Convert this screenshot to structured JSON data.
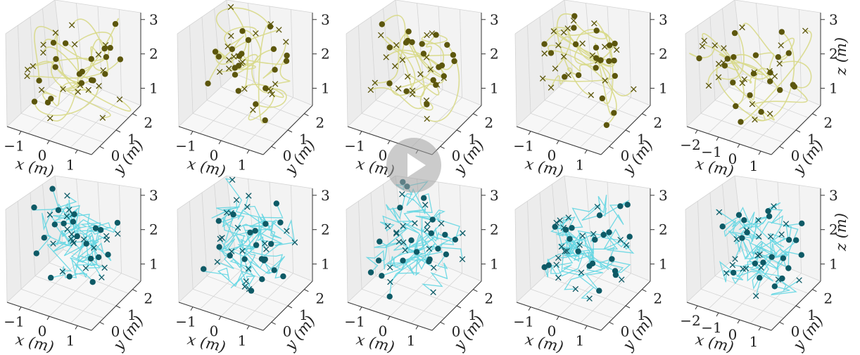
{
  "colors": {
    "top_path": "#d8d98a",
    "top_marker": "#5c560c",
    "bottom_path": "#64d6e2",
    "bottom_marker": "#0e5a66",
    "pane_left": "#ececec",
    "pane_right": "#f3f3f3",
    "pane_floor": "#f7f7f7",
    "grid": "#d4d4d4"
  },
  "overlay": {
    "icon": "play-icon"
  },
  "chart_data": [
    {
      "type": "line3d",
      "panel": "row1-col1",
      "style": "smooth",
      "xlabel": "x (m)",
      "ylabel": "y (m)",
      "zlabel": "",
      "xticks": [
        "−1",
        "0",
        "1"
      ],
      "yticks": [
        "0",
        "1",
        "2"
      ],
      "zticks": [
        "1",
        "2",
        "3"
      ],
      "xlim": [
        -1.5,
        1.5
      ],
      "ylim": [
        -0.5,
        2.5
      ],
      "zlim": [
        0.5,
        3.2
      ],
      "start_marker": "circle",
      "goal_marker": "x",
      "n_agents": 20
    },
    {
      "type": "line3d",
      "panel": "row1-col2",
      "style": "smooth",
      "xlabel": "x (m)",
      "ylabel": "y (m)",
      "zlabel": "",
      "xticks": [
        "−1",
        "0",
        "1"
      ],
      "yticks": [
        "0",
        "1",
        "2"
      ],
      "zticks": [
        "1",
        "2",
        "3"
      ],
      "xlim": [
        -1.5,
        1.5
      ],
      "ylim": [
        -0.5,
        2.5
      ],
      "zlim": [
        0.5,
        3.2
      ],
      "start_marker": "circle",
      "goal_marker": "x",
      "n_agents": 20
    },
    {
      "type": "line3d",
      "panel": "row1-col3",
      "style": "smooth",
      "xlabel": "x (m)",
      "ylabel": "y (m)",
      "zlabel": "",
      "xticks": [
        "−1",
        "0",
        "1"
      ],
      "yticks": [
        "0",
        "1",
        "2"
      ],
      "zticks": [
        "1",
        "2",
        "3"
      ],
      "xlim": [
        -1.5,
        1.5
      ],
      "ylim": [
        -0.5,
        2.5
      ],
      "zlim": [
        0.5,
        3.2
      ],
      "start_marker": "circle",
      "goal_marker": "x",
      "n_agents": 20
    },
    {
      "type": "line3d",
      "panel": "row1-col4",
      "style": "smooth",
      "xlabel": "x (m)",
      "ylabel": "y (m)",
      "zlabel": "",
      "xticks": [
        "−1",
        "0",
        "1"
      ],
      "yticks": [
        "0",
        "1",
        "2"
      ],
      "zticks": [
        "1",
        "2",
        "3"
      ],
      "xlim": [
        -1.5,
        1.5
      ],
      "ylim": [
        -0.5,
        2.5
      ],
      "zlim": [
        0.5,
        3.2
      ],
      "start_marker": "circle",
      "goal_marker": "x",
      "n_agents": 20
    },
    {
      "type": "line3d",
      "panel": "row1-col5",
      "style": "smooth",
      "xlabel": "x (m)",
      "ylabel": "y (m)",
      "zlabel": "z (m)",
      "xticks": [
        "−2",
        "−1",
        "0",
        "1"
      ],
      "yticks": [
        "0",
        "1",
        "2"
      ],
      "zticks": [
        "1",
        "2",
        "3"
      ],
      "xlim": [
        -2.5,
        1.5
      ],
      "ylim": [
        -0.5,
        2.5
      ],
      "zlim": [
        0.5,
        3.2
      ],
      "start_marker": "circle",
      "goal_marker": "x",
      "n_agents": 20
    },
    {
      "type": "line3d",
      "panel": "row2-col1",
      "style": "jagged",
      "xlabel": "x (m)",
      "ylabel": "y (m)",
      "zlabel": "",
      "xticks": [
        "−1",
        "0",
        "1"
      ],
      "yticks": [
        "0",
        "1",
        "2"
      ],
      "zticks": [
        "1",
        "2",
        "3"
      ],
      "xlim": [
        -1.5,
        1.5
      ],
      "ylim": [
        -0.5,
        2.5
      ],
      "zlim": [
        0.5,
        3.2
      ],
      "start_marker": "circle",
      "goal_marker": "x",
      "n_agents": 20
    },
    {
      "type": "line3d",
      "panel": "row2-col2",
      "style": "jagged",
      "xlabel": "x (m)",
      "ylabel": "y (m)",
      "zlabel": "",
      "xticks": [
        "−1",
        "0",
        "1"
      ],
      "yticks": [
        "0",
        "1",
        "2"
      ],
      "zticks": [
        "1",
        "2",
        "3"
      ],
      "xlim": [
        -1.5,
        1.5
      ],
      "ylim": [
        -0.5,
        2.5
      ],
      "zlim": [
        0.5,
        3.2
      ],
      "start_marker": "circle",
      "goal_marker": "x",
      "n_agents": 20
    },
    {
      "type": "line3d",
      "panel": "row2-col3",
      "style": "jagged",
      "xlabel": "x (m)",
      "ylabel": "y (m)",
      "zlabel": "",
      "xticks": [
        "−1",
        "0",
        "1"
      ],
      "yticks": [
        "0",
        "1",
        "2"
      ],
      "zticks": [
        "1",
        "2",
        "3"
      ],
      "xlim": [
        -1.5,
        1.5
      ],
      "ylim": [
        -0.5,
        2.5
      ],
      "zlim": [
        0.5,
        3.2
      ],
      "start_marker": "circle",
      "goal_marker": "x",
      "n_agents": 20
    },
    {
      "type": "line3d",
      "panel": "row2-col4",
      "style": "jagged",
      "xlabel": "x (m)",
      "ylabel": "y (m)",
      "zlabel": "",
      "xticks": [
        "−1",
        "0",
        "1"
      ],
      "yticks": [
        "0",
        "1",
        "2"
      ],
      "zticks": [
        "1",
        "2",
        "3"
      ],
      "xlim": [
        -1.5,
        1.5
      ],
      "ylim": [
        -0.5,
        2.5
      ],
      "zlim": [
        0.5,
        3.2
      ],
      "start_marker": "circle",
      "goal_marker": "x",
      "n_agents": 20
    },
    {
      "type": "line3d",
      "panel": "row2-col5",
      "style": "jagged",
      "xlabel": "x (m)",
      "ylabel": "y (m)",
      "zlabel": "z (m)",
      "xticks": [
        "−2",
        "−1",
        "0",
        "1"
      ],
      "yticks": [
        "0",
        "1",
        "2"
      ],
      "zticks": [
        "1",
        "2",
        "3"
      ],
      "xlim": [
        -2.5,
        1.5
      ],
      "ylim": [
        -0.5,
        2.5
      ],
      "zlim": [
        0.5,
        3.2
      ],
      "start_marker": "circle",
      "goal_marker": "x",
      "n_agents": 20
    }
  ]
}
